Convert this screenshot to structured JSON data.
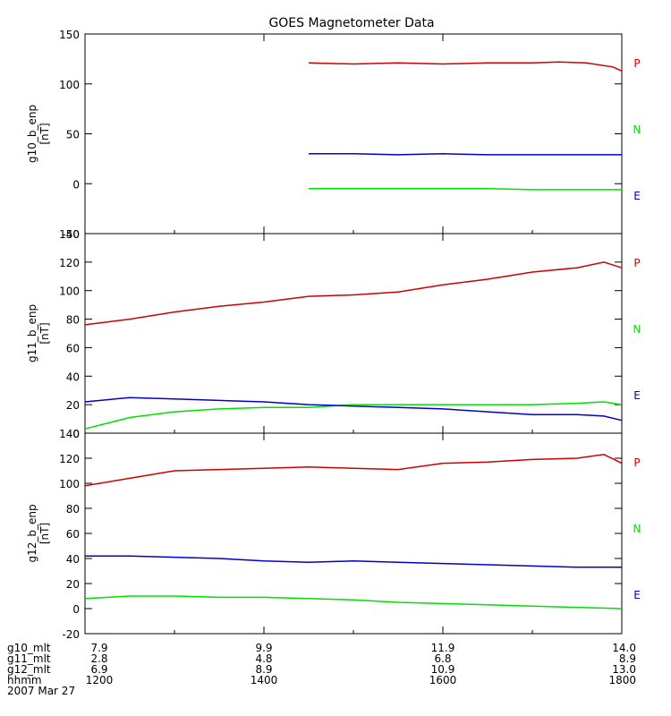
{
  "chart_data": [
    {
      "type": "line",
      "title": "GOES Magnetometer Data",
      "ylabel": "g10_b_enp",
      "yunit": "[nT]",
      "ylim": [
        -50,
        150
      ],
      "yticks": [
        -50,
        0,
        50,
        100,
        150
      ],
      "xlim": [
        1200,
        1800
      ],
      "series": [
        {
          "name": "P",
          "color": "#cc0000",
          "x": [
            1450,
            1500,
            1550,
            1600,
            1650,
            1700,
            1730,
            1760,
            1790,
            1800
          ],
          "values": [
            121,
            120,
            121,
            120,
            121,
            121,
            122,
            121,
            117,
            113
          ]
        },
        {
          "name": "N",
          "color": "#00e000",
          "x": [
            1450,
            1500,
            1550,
            1600,
            1650,
            1700,
            1750,
            1800
          ],
          "values": [
            -5,
            -5,
            -5,
            -5,
            -5,
            -6,
            -6,
            -6
          ]
        },
        {
          "name": "E",
          "color": "#0000cc",
          "x": [
            1450,
            1500,
            1550,
            1600,
            1650,
            1700,
            1750,
            1800
          ],
          "values": [
            30,
            30,
            29,
            30,
            29,
            29,
            29,
            29
          ]
        }
      ]
    },
    {
      "type": "line",
      "ylabel": "g11_b_enp",
      "yunit": "[nT]",
      "ylim": [
        0,
        140
      ],
      "yticks": [
        0,
        20,
        40,
        60,
        80,
        100,
        120,
        140
      ],
      "xlim": [
        1200,
        1800
      ],
      "series": [
        {
          "name": "P",
          "color": "#cc0000",
          "x": [
            1200,
            1250,
            1300,
            1350,
            1400,
            1450,
            1500,
            1550,
            1600,
            1650,
            1700,
            1750,
            1780,
            1800
          ],
          "values": [
            76,
            80,
            85,
            89,
            92,
            96,
            97,
            99,
            104,
            108,
            113,
            116,
            120,
            116
          ]
        },
        {
          "name": "N",
          "color": "#00e000",
          "x": [
            1200,
            1250,
            1300,
            1350,
            1400,
            1450,
            1500,
            1550,
            1600,
            1650,
            1700,
            1750,
            1780,
            1800
          ],
          "values": [
            3,
            11,
            15,
            17,
            18,
            18,
            20,
            20,
            20,
            20,
            20,
            21,
            22,
            20
          ]
        },
        {
          "name": "E",
          "color": "#0000cc",
          "x": [
            1200,
            1250,
            1300,
            1350,
            1400,
            1450,
            1500,
            1550,
            1600,
            1650,
            1700,
            1750,
            1780,
            1800
          ],
          "values": [
            22,
            25,
            24,
            23,
            22,
            20,
            19,
            18,
            17,
            15,
            13,
            13,
            12,
            9
          ]
        }
      ]
    },
    {
      "type": "line",
      "ylabel": "g12_b_enp",
      "yunit": "[nT]",
      "ylim": [
        -20,
        140
      ],
      "yticks": [
        -20,
        0,
        20,
        40,
        60,
        80,
        100,
        120,
        140
      ],
      "xlim": [
        1200,
        1800
      ],
      "series": [
        {
          "name": "P",
          "color": "#cc0000",
          "x": [
            1200,
            1250,
            1300,
            1350,
            1400,
            1450,
            1500,
            1550,
            1600,
            1650,
            1700,
            1750,
            1780,
            1800
          ],
          "values": [
            98,
            104,
            110,
            111,
            112,
            113,
            112,
            111,
            116,
            117,
            119,
            120,
            123,
            116
          ]
        },
        {
          "name": "N",
          "color": "#00e000",
          "x": [
            1200,
            1250,
            1300,
            1350,
            1400,
            1450,
            1500,
            1550,
            1600,
            1650,
            1700,
            1750,
            1800
          ],
          "values": [
            8,
            10,
            10,
            9,
            9,
            8,
            7,
            5,
            4,
            3,
            2,
            1,
            0
          ]
        },
        {
          "name": "E",
          "color": "#0000cc",
          "x": [
            1200,
            1250,
            1300,
            1350,
            1400,
            1450,
            1500,
            1550,
            1600,
            1650,
            1700,
            1750,
            1800
          ],
          "values": [
            42,
            42,
            41,
            40,
            38,
            37,
            38,
            37,
            36,
            35,
            34,
            33,
            33
          ]
        }
      ]
    }
  ],
  "xaxis_table": {
    "rows": [
      {
        "label": "g10_mlt",
        "values": [
          "7.9",
          "9.9",
          "11.9",
          "14.0"
        ]
      },
      {
        "label": "g11_mlt",
        "values": [
          "2.8",
          "4.8",
          "6.8",
          "8.9"
        ]
      },
      {
        "label": "g12_mlt",
        "values": [
          "6.9",
          "8.9",
          "10.9",
          "13.0"
        ]
      },
      {
        "label": "hhmm",
        "values": [
          "1200",
          "1400",
          "1600",
          "1800"
        ]
      }
    ],
    "tick_times": [
      1200,
      1400,
      1600,
      1800
    ],
    "date": "2007 Mar 27"
  }
}
